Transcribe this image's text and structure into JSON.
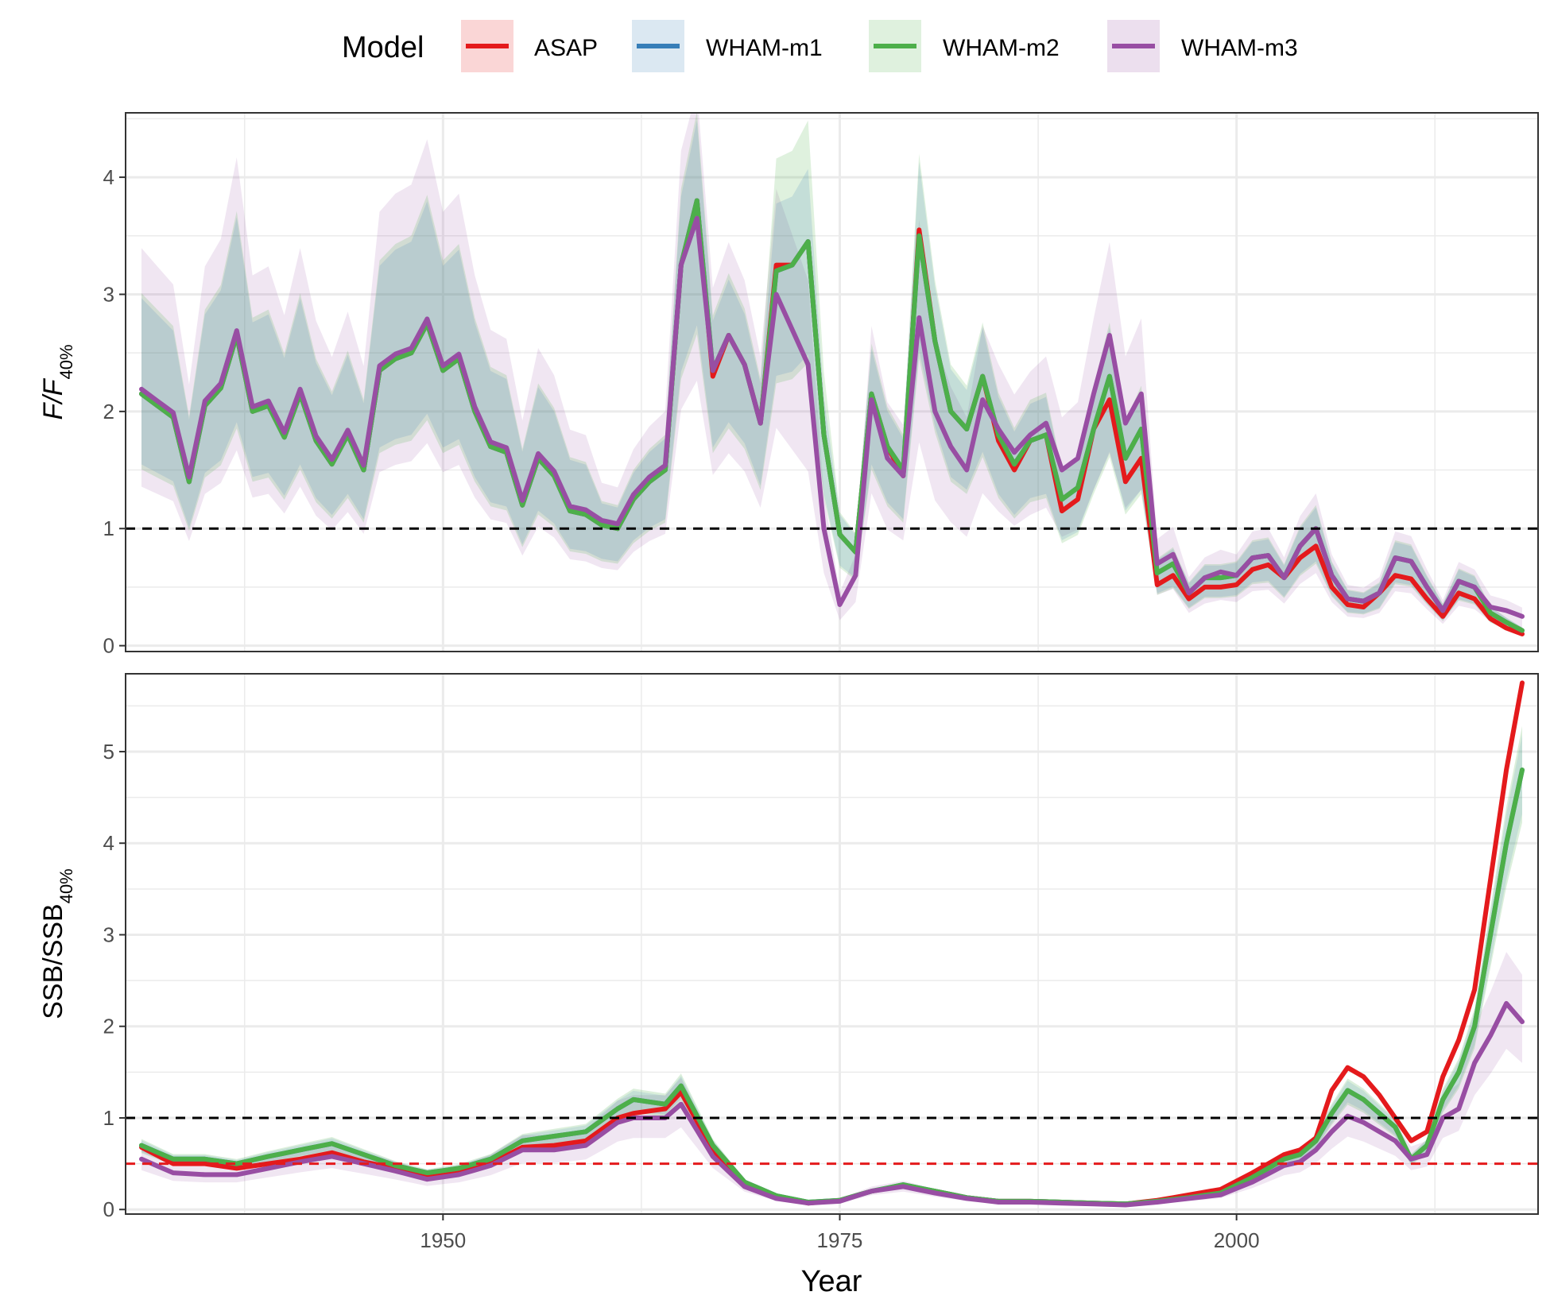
{
  "chart_data": {
    "type": "line",
    "legend": {
      "title": "Model",
      "position": "top",
      "entries": [
        {
          "label": "ASAP",
          "color": "#e41a1c"
        },
        {
          "label": "WHAM-m1",
          "color": "#377eb8"
        },
        {
          "label": "WHAM-m2",
          "color": "#4daf4a"
        },
        {
          "label": "WHAM-m3",
          "color": "#984ea3"
        }
      ]
    },
    "xlabel": "Year",
    "xlim": [
      1930,
      2019
    ],
    "xticks": [
      1950,
      1975,
      2000
    ],
    "panels": [
      {
        "id": "F",
        "ylabel_main": "F/F",
        "ylabel_sub": "40%",
        "ylim": [
          -0.05,
          4.55
        ],
        "yticks": [
          0,
          1,
          2,
          3,
          4
        ],
        "reference_lines": [
          {
            "y": 1,
            "color": "#000000",
            "style": "dashed"
          }
        ],
        "keyframes": {
          "years": [
            1931,
            1932,
            1933,
            1934,
            1935,
            1936,
            1937,
            1938,
            1939,
            1940,
            1941,
            1942,
            1943,
            1944,
            1945,
            1946,
            1947,
            1948,
            1949,
            1950,
            1951,
            1952,
            1953,
            1954,
            1955,
            1956,
            1957,
            1958,
            1959,
            1960,
            1961,
            1962,
            1963,
            1964,
            1965,
            1966,
            1967,
            1968,
            1969,
            1970,
            1971,
            1972,
            1973,
            1974,
            1975,
            1976,
            1977,
            1978,
            1979,
            1980,
            1981,
            1982,
            1983,
            1984,
            1985,
            1986,
            1987,
            1988,
            1989,
            1990,
            1991,
            1992,
            1993,
            1994,
            1995,
            1996,
            1997,
            1998,
            1999,
            2000,
            2001,
            2002,
            2003,
            2004,
            2005,
            2006,
            2007,
            2008,
            2009,
            2010,
            2011,
            2012,
            2013,
            2014,
            2015,
            2016,
            2017,
            2018
          ],
          "base": [
            2.15,
            2.05,
            1.95,
            1.4,
            2.05,
            2.2,
            2.65,
            2.0,
            2.05,
            1.78,
            2.15,
            1.75,
            1.55,
            1.8,
            1.5,
            2.35,
            2.45,
            2.5,
            2.75,
            2.35,
            2.45,
            2.0,
            1.7,
            1.65,
            1.2,
            1.6,
            1.45,
            1.15,
            1.12,
            1.03,
            1.0,
            1.25,
            1.4,
            1.5,
            3.25,
            3.8,
            2.35,
            2.65,
            2.4,
            1.9,
            3.2,
            3.25,
            3.45,
            1.8,
            0.95,
            0.8,
            2.15,
            1.7,
            1.5,
            3.5,
            2.6,
            2.0,
            1.85,
            2.3,
            1.8,
            1.55,
            1.75,
            1.8,
            1.25,
            1.35,
            1.85,
            2.3,
            1.6,
            1.85,
            0.62,
            0.7,
            0.45,
            0.58,
            0.58,
            0.6,
            0.75,
            0.77,
            0.58,
            0.85,
            1.0,
            0.6,
            0.4,
            0.38,
            0.45,
            0.75,
            0.72,
            0.5,
            0.3,
            0.55,
            0.5,
            0.28,
            0.2,
            0.13
          ],
          "m3_delta": {
            "1966": -0.15,
            "1971": -0.2,
            "1972": -0.55,
            "1973": -1.05,
            "1974": -0.8,
            "1975": -0.6,
            "1976": -0.2,
            "1977": -0.05,
            "1978": -0.1,
            "1979": -0.05,
            "1980": -0.7,
            "1981": -0.6,
            "1982": -0.3,
            "1983": -0.35,
            "1984": -0.2,
            "1985": 0.05,
            "1986": 0.1,
            "1987": 0.05,
            "1988": 0.1,
            "1989": 0.25,
            "1990": 0.25,
            "1991": 0.3,
            "1992": 0.35,
            "1993": 0.3,
            "1994": 0.3,
            "1995": 0.08,
            "1996": 0.08,
            "1999": 0.05,
            "2016": 0.05,
            "2017": 0.1,
            "2018": 0.12
          },
          "asap_delta": {
            "1967": -0.05,
            "1971": 0.05,
            "1979": -0.05,
            "1980": 0.05,
            "1985": -0.05,
            "1986": -0.05,
            "1989": -0.1,
            "1990": -0.1,
            "1992": -0.2,
            "1993": -0.2,
            "1994": -0.25,
            "1995": -0.1,
            "1996": -0.1,
            "1997": -0.05,
            "1998": -0.08,
            "1999": -0.08,
            "2000": -0.08,
            "2001": -0.1,
            "2002": -0.08,
            "2004": -0.1,
            "2005": -0.15,
            "2006": -0.1,
            "2007": -0.05,
            "2008": -0.05,
            "2010": -0.15,
            "2011": -0.15,
            "2012": -0.1,
            "2013": -0.05,
            "2014": -0.1,
            "2015": -0.1,
            "2016": -0.05,
            "2017": -0.05,
            "2018": -0.03
          }
        }
      },
      {
        "id": "SSB",
        "ylabel_main": "SSB/SSB",
        "ylabel_sub": "40%",
        "ylim": [
          -0.05,
          5.85
        ],
        "yticks": [
          0,
          1,
          2,
          3,
          4,
          5
        ],
        "reference_lines": [
          {
            "y": 1,
            "color": "#000000",
            "style": "dashed"
          },
          {
            "y": 0.5,
            "color": "#e41a1c",
            "style": "dashed"
          }
        ],
        "keyframes": {
          "years": [
            1931,
            1933,
            1935,
            1937,
            1939,
            1941,
            1943,
            1945,
            1947,
            1949,
            1951,
            1953,
            1955,
            1957,
            1959,
            1961,
            1962,
            1964,
            1965,
            1967,
            1969,
            1971,
            1973,
            1975,
            1977,
            1979,
            1981,
            1983,
            1985,
            1987,
            1989,
            1991,
            1993,
            1995,
            1997,
            1999,
            2001,
            2003,
            2004,
            2005,
            2006,
            2007,
            2008,
            2009,
            2010,
            2011,
            2012,
            2013,
            2014,
            2015,
            2016,
            2017,
            2018
          ],
          "base": [
            0.7,
            0.55,
            0.55,
            0.5,
            0.58,
            0.65,
            0.72,
            0.6,
            0.48,
            0.4,
            0.45,
            0.55,
            0.75,
            0.8,
            0.85,
            1.1,
            1.2,
            1.15,
            1.35,
            0.7,
            0.3,
            0.15,
            0.08,
            0.1,
            0.2,
            0.27,
            0.2,
            0.13,
            0.09,
            0.09,
            0.08,
            0.07,
            0.06,
            0.09,
            0.13,
            0.18,
            0.35,
            0.55,
            0.6,
            0.75,
            1.05,
            1.3,
            1.2,
            1.05,
            0.9,
            0.55,
            0.7,
            1.2,
            1.5,
            2.0,
            3.0,
            4.0,
            4.8
          ],
          "asap": [
            0.68,
            0.5,
            0.5,
            0.45,
            0.5,
            0.55,
            0.62,
            0.52,
            0.45,
            0.38,
            0.42,
            0.5,
            0.68,
            0.7,
            0.75,
            1.0,
            1.05,
            1.1,
            1.28,
            0.65,
            0.28,
            0.14,
            0.07,
            0.1,
            0.2,
            0.26,
            0.2,
            0.13,
            0.09,
            0.09,
            0.08,
            0.07,
            0.06,
            0.1,
            0.16,
            0.22,
            0.4,
            0.6,
            0.65,
            0.78,
            1.3,
            1.55,
            1.45,
            1.25,
            1.0,
            0.75,
            0.85,
            1.45,
            1.85,
            2.4,
            3.6,
            4.8,
            5.75
          ],
          "m3": [
            0.55,
            0.4,
            0.38,
            0.38,
            0.45,
            0.52,
            0.58,
            0.5,
            0.42,
            0.33,
            0.38,
            0.48,
            0.65,
            0.65,
            0.7,
            0.95,
            1.0,
            1.0,
            1.15,
            0.58,
            0.25,
            0.12,
            0.07,
            0.09,
            0.2,
            0.25,
            0.18,
            0.12,
            0.08,
            0.08,
            0.07,
            0.06,
            0.05,
            0.08,
            0.12,
            0.16,
            0.3,
            0.48,
            0.52,
            0.65,
            0.85,
            1.02,
            0.95,
            0.85,
            0.75,
            0.55,
            0.6,
            1.0,
            1.1,
            1.6,
            1.9,
            2.25,
            2.05
          ]
        }
      }
    ]
  }
}
